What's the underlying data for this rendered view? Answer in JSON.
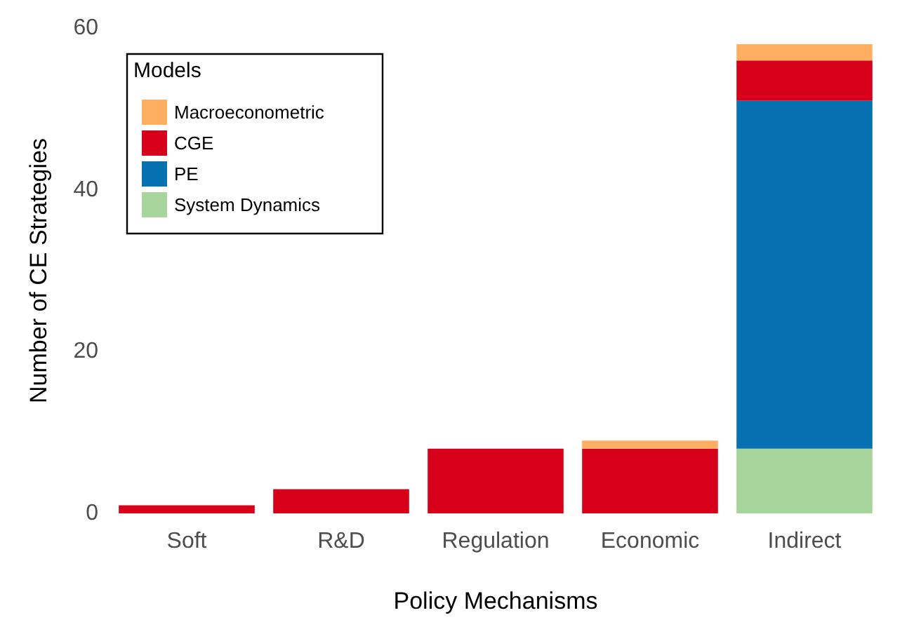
{
  "chart_data": {
    "type": "bar",
    "xlabel": "Policy Mechanisms",
    "ylabel": "Number of CE Strategies",
    "legend_title": "Models",
    "categories": [
      "Soft",
      "R&D",
      "Regulation",
      "Economic",
      "Indirect"
    ],
    "stacked": true,
    "ylim": [
      0,
      60
    ],
    "yticks": [
      0,
      20,
      40,
      60
    ],
    "grid": false,
    "legend": "top left",
    "series": [
      {
        "name": "System Dynamics",
        "color": "#a6d49a",
        "values": [
          null,
          null,
          null,
          null,
          8
        ]
      },
      {
        "name": "PE",
        "color": "#0571b0",
        "values": [
          null,
          null,
          null,
          null,
          43
        ]
      },
      {
        "name": "CGE",
        "color": "#d7001a",
        "values": [
          1,
          3,
          8,
          8,
          5
        ]
      },
      {
        "name": "Macroeconometric",
        "color": "#fdae61",
        "values": [
          null,
          null,
          null,
          1,
          2
        ]
      }
    ]
  }
}
